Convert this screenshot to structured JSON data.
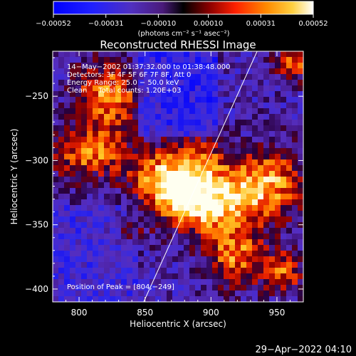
{
  "chart_data": {
    "type": "heatmap",
    "title": "Reconstructed RHESSI Image",
    "xlabel": "Heliocentric X (arcsec)",
    "ylabel": "Heliocentric Y (arcsec)",
    "x_ticks": [
      800,
      850,
      900,
      950
    ],
    "y_ticks": [
      -250,
      -300,
      -350,
      -400
    ],
    "x_tick_labels": [
      "800",
      "850",
      "900",
      "950"
    ],
    "y_tick_labels": [
      "−250",
      "−300",
      "−350",
      "−400"
    ],
    "xlim": [
      780,
      970
    ],
    "ylim": [
      -410,
      -215
    ],
    "grid": false,
    "colorbar": {
      "min": -0.00052,
      "max": 0.00052,
      "tick_values": [
        -0.00052,
        -0.00031,
        -0.0001,
        0.0001,
        0.00031,
        0.00052
      ],
      "tick_labels": [
        "−0.00052",
        "−0.00031",
        "−0.00010",
        "0.00010",
        "0.00031",
        "0.00052"
      ],
      "unit_label": "(photons cm⁻² s⁻¹ asec⁻²)"
    },
    "annotations": [
      "14−May−2002 01:37:32.000 to 01:38:48.000",
      "Detectors: 3F 4F 5F 6F 7F 8F, Att 0",
      "Energy Range: 25.0 − 50.0 keV",
      "Clean     Total counts: 1.20E+03"
    ],
    "peak_label": "Position of Peak = [804,−249]",
    "limb_line": {
      "x": [
        849,
        935
      ],
      "y": [
        -410,
        -215
      ]
    }
  },
  "footer": {
    "timestamp": "29−Apr−2022 04:10"
  },
  "colors": {
    "background": "#000000",
    "text": "#ffffff"
  }
}
